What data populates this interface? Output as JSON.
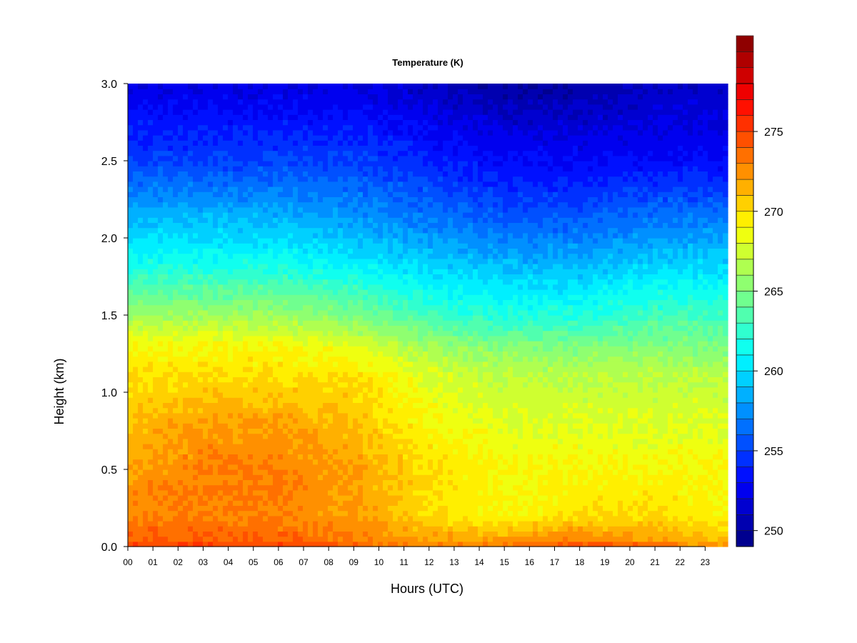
{
  "chart_data": {
    "type": "heatmap",
    "title": "Temperature (K)",
    "xlabel": "Hours (UTC)",
    "ylabel": "Height (km)",
    "x_ticks": [
      "00",
      "01",
      "02",
      "03",
      "04",
      "05",
      "06",
      "07",
      "08",
      "09",
      "10",
      "11",
      "12",
      "13",
      "14",
      "15",
      "16",
      "17",
      "18",
      "19",
      "20",
      "21",
      "22",
      "23"
    ],
    "x_range": [
      0,
      23.9
    ],
    "y_ticks": [
      "0.0",
      "0.5",
      "1.0",
      "1.5",
      "2.0",
      "2.5",
      "3.0"
    ],
    "ylim": [
      0,
      3
    ],
    "colorbar": {
      "range": [
        249,
        278
      ],
      "step": 1,
      "ticks": [
        250,
        255,
        260,
        265,
        270,
        275
      ],
      "colors": [
        "#00008f",
        "#0000b0",
        "#0000d0",
        "#0000ef",
        "#0010ff",
        "#0030ff",
        "#0050ff",
        "#0070ff",
        "#0090ff",
        "#00b0ff",
        "#00d0ff",
        "#00efff",
        "#10ffef",
        "#30ffcf",
        "#50ffaf",
        "#70ff8f",
        "#8fff70",
        "#afff50",
        "#cfff30",
        "#efff10",
        "#ffef00",
        "#ffd000",
        "#ffb000",
        "#ff9000",
        "#ff7000",
        "#ff5000",
        "#ff3000",
        "#ff1000",
        "#ef0000",
        "#cf0000",
        "#af0000",
        "#8f0000"
      ]
    },
    "temperature_profile": {
      "heights_km": [
        0.0,
        0.05,
        0.2,
        0.5,
        0.8,
        1.1,
        1.3,
        1.5,
        1.8,
        2.1,
        2.5,
        3.0
      ],
      "hours": [
        0,
        3,
        6,
        9,
        12,
        15,
        18,
        21,
        23.9
      ],
      "values_K": [
        [
          275,
          275,
          275,
          274,
          273,
          274,
          275,
          274,
          272
        ],
        [
          274,
          274,
          274,
          273,
          272,
          272,
          273,
          272,
          271
        ],
        [
          273,
          273,
          273,
          272,
          270,
          269,
          270,
          270,
          269
        ],
        [
          272,
          273,
          273,
          272,
          270,
          269,
          269,
          269,
          269
        ],
        [
          271,
          272,
          272,
          271,
          269,
          268,
          268,
          268,
          268
        ],
        [
          270,
          270,
          270,
          270,
          268,
          267,
          267,
          267,
          267
        ],
        [
          269,
          269,
          269,
          268,
          266,
          265,
          265,
          265,
          265
        ],
        [
          266,
          266,
          266,
          265,
          263,
          262,
          262,
          263,
          263
        ],
        [
          262,
          262,
          262,
          261,
          260,
          259,
          259,
          260,
          260
        ],
        [
          259,
          259,
          259,
          258,
          257,
          256,
          256,
          257,
          257
        ],
        [
          255,
          255,
          255,
          255,
          254,
          253,
          253,
          253,
          253
        ],
        [
          252,
          252,
          252,
          252,
          251,
          250,
          250,
          251,
          251
        ]
      ]
    }
  }
}
